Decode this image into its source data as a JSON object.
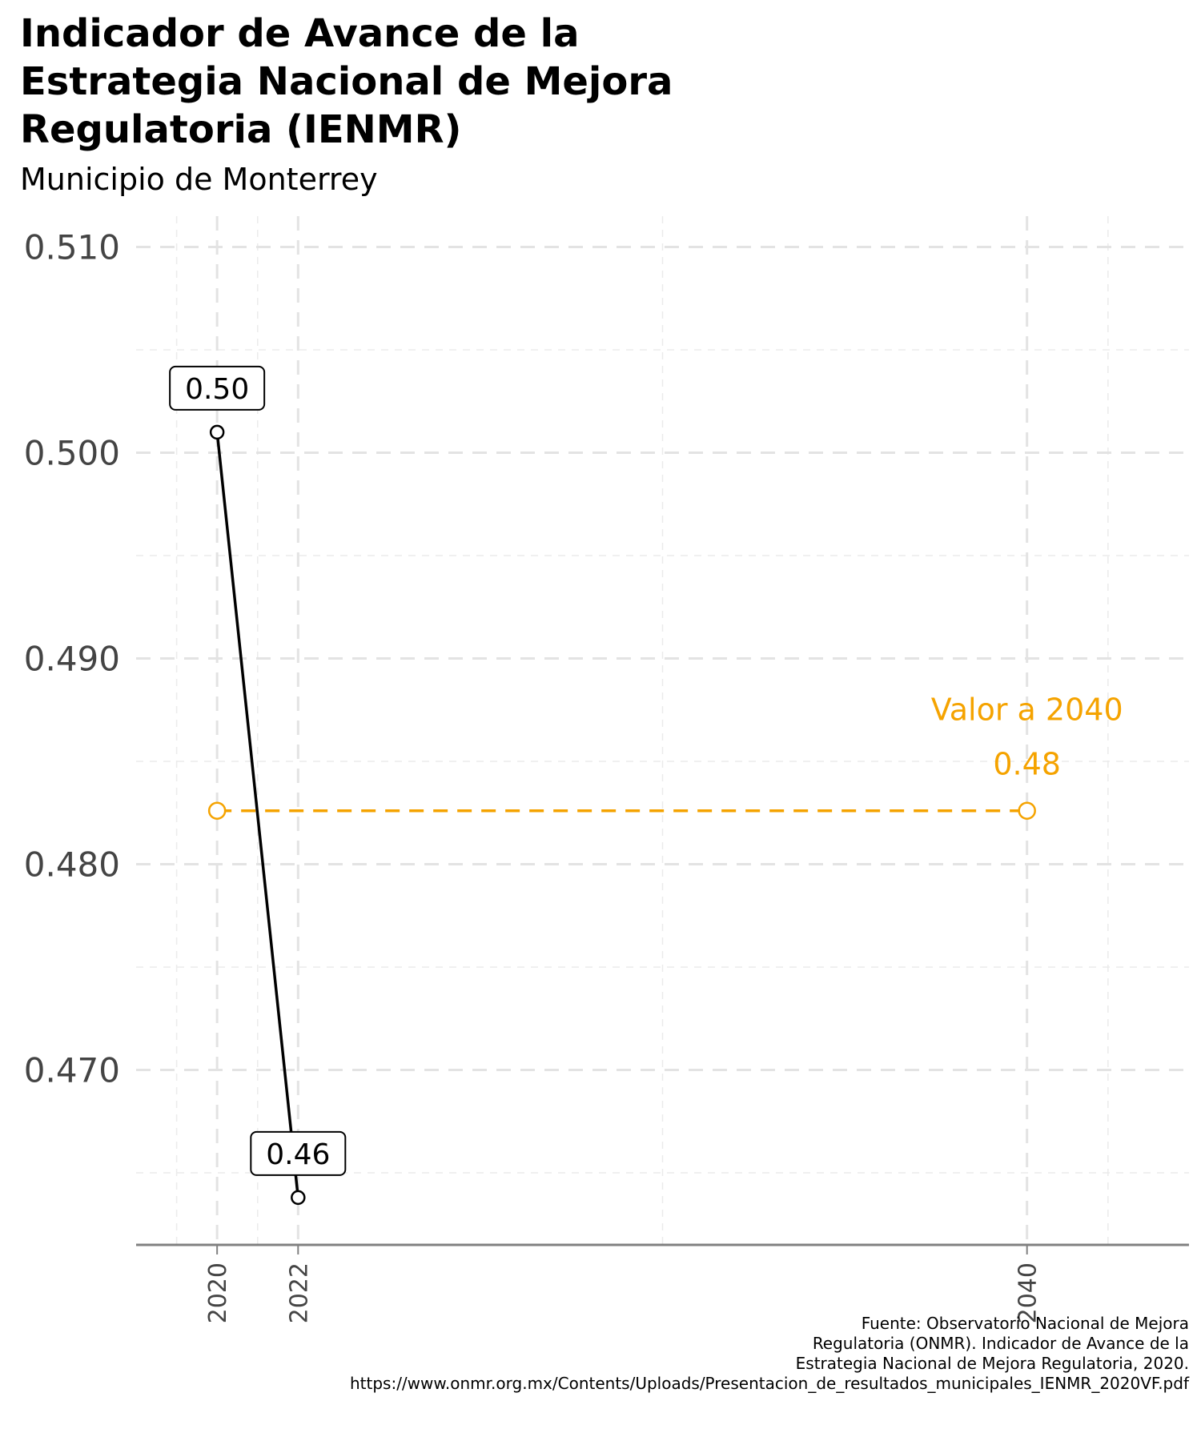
{
  "chart_data": {
    "type": "line",
    "title": "Indicador de Avance de la Estrategia Nacional de Mejora Regulatoria (IENMR)",
    "title_lines": [
      "Indicador de Avance de la",
      "Estrategia Nacional de Mejora",
      "Regulatoria (IENMR)"
    ],
    "subtitle": "Municipio de Monterrey",
    "xlabel": "",
    "ylabel": "",
    "x_ticks": [
      2020,
      2022,
      2040
    ],
    "x_tick_labels": [
      "2020",
      "2022",
      "2040"
    ],
    "xlim": [
      2018,
      2044
    ],
    "y_ticks": [
      0.47,
      0.48,
      0.49,
      0.5,
      0.51
    ],
    "y_tick_labels": [
      "0.470",
      "0.480",
      "0.490",
      "0.500",
      "0.510"
    ],
    "ylim": [
      0.4615,
      0.5115
    ],
    "grid": true,
    "series": [
      {
        "x": [
          2020,
          2022
        ],
        "y": [
          0.501,
          0.4638
        ],
        "labels": [
          "0.50",
          "0.46"
        ],
        "color": "#000000"
      }
    ],
    "target": {
      "label": "Valor a 2040",
      "value_label": "0.48",
      "x": [
        2020,
        2040
      ],
      "y": 0.4826,
      "color": "#F5A300"
    },
    "caption_lines": [
      "Fuente: Observatorio Nacional de Mejora",
      "Regulatoria (ONMR). Indicador de Avance de la",
      "Estrategia Nacional de Mejora Regulatoria, 2020.",
      "https://www.onmr.org.mx/Contents/Uploads/Presentacion_de_resultados_municipales_IENMR_2020VF.pdf"
    ]
  }
}
